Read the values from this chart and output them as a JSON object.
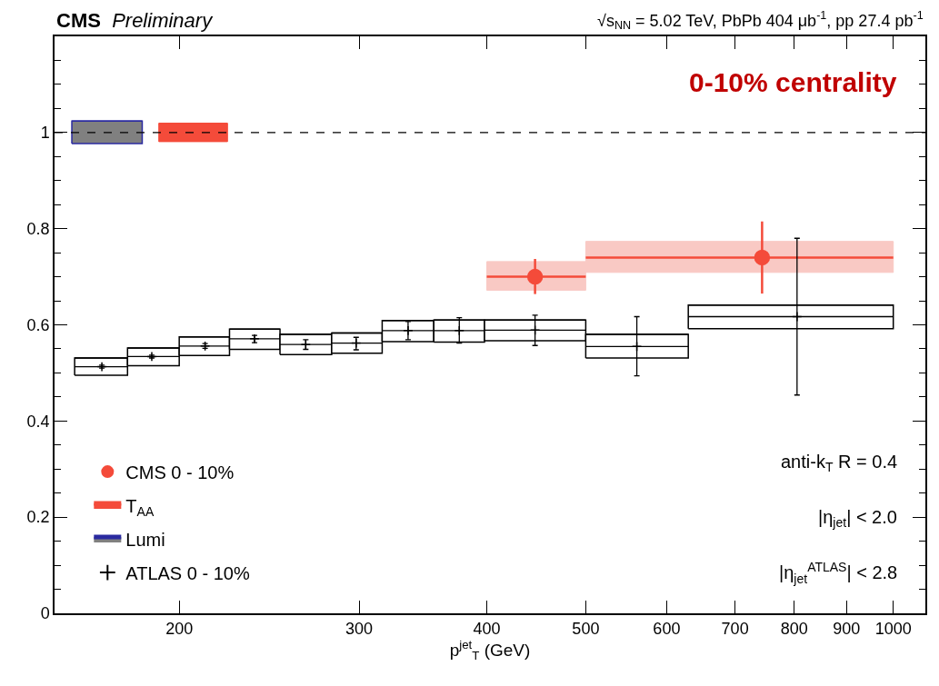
{
  "chart_data": {
    "type": "scatter",
    "title": "CMS",
    "subtitle": "Preliminary",
    "xlabel": "p$^{jet}$$_{T}$ (GeV)",
    "log": "x",
    "xlim": [
      151,
      1075
    ],
    "xticks": [
      200,
      300,
      400,
      500,
      600,
      700,
      800,
      900,
      1000
    ],
    "ylim": [
      0,
      1.2
    ],
    "yticks": [
      0,
      0.2,
      0.4,
      0.6,
      0.8,
      1
    ],
    "legend": "bottom left",
    "series": [
      {
        "type": "bar",
        "color": "#f9c9c4",
        "x": [
          447.2,
          707.1
        ],
        "xerrors": [
          [
            400,
            500
          ],
          [
            500,
            1000
          ]
        ],
        "base": [
          0.672,
          0.709
        ],
        "values": [
          0.059,
          0.064
        ]
      },
      {
        "type": "bar",
        "color": "#ffffff",
        "x": [
          167.6,
          188.7,
          211.7,
          237.7,
          266.1,
          298.1,
          335.0,
          375.7,
          446.1,
          561.2,
          793.7
        ],
        "xerrors": [
          [
            158,
            178
          ],
          [
            178,
            200
          ],
          [
            200,
            224
          ],
          [
            224,
            251
          ],
          [
            251,
            282
          ],
          [
            282,
            316
          ],
          [
            316,
            355
          ],
          [
            355,
            398
          ],
          [
            398,
            500
          ],
          [
            500,
            630
          ],
          [
            630,
            1000
          ]
        ],
        "base": [
          0.495,
          0.515,
          0.536,
          0.549,
          0.538,
          0.541,
          0.565,
          0.564,
          0.567,
          0.531,
          0.592
        ],
        "values": [
          0.036,
          0.037,
          0.039,
          0.042,
          0.042,
          0.042,
          0.044,
          0.046,
          0.043,
          0.049,
          0.049
        ]
      },
      {
        "name": "CMS 0 - 10%",
        "marker": "circle",
        "color": "#f44b3a",
        "x": [
          446,
          744
        ],
        "values": [
          0.7,
          0.74
        ],
        "errors": [
          [
            0.664,
            0.737
          ],
          [
            0.665,
            0.815
          ]
        ],
        "xerrors": [
          [
            400,
            500
          ],
          [
            500,
            1000
          ]
        ]
      },
      {
        "name": "T$_{AA}$",
        "type": "bar",
        "color": "#f44b3a",
        "x": [
          206.4
        ],
        "xerrors": [
          [
            191,
            223
          ]
        ],
        "base": [
          0.981
        ],
        "values": [
          0.038
        ]
      },
      {
        "name": "Lumi",
        "type": "bar",
        "color": "#808080",
        "x": [
          170.0
        ],
        "xerrors": [
          [
            157,
            184
          ]
        ],
        "base": [
          0.977
        ],
        "values": [
          0.047
        ]
      },
      {
        "name": "ATLAS 0 - 10%",
        "marker": "cross",
        "color": "#000000",
        "x": [
          168,
          188,
          212,
          237,
          266,
          298,
          335,
          376,
          446,
          561,
          805
        ],
        "values": [
          0.513,
          0.534,
          0.556,
          0.571,
          0.559,
          0.562,
          0.588,
          0.588,
          0.589,
          0.555,
          0.617
        ],
        "errors": [
          [
            0.51,
            0.516
          ],
          [
            0.531,
            0.537
          ],
          [
            0.551,
            0.561
          ],
          [
            0.563,
            0.578
          ],
          [
            0.549,
            0.569
          ],
          [
            0.548,
            0.574
          ],
          [
            0.569,
            0.607
          ],
          [
            0.562,
            0.615
          ],
          [
            0.557,
            0.62
          ],
          [
            0.494,
            0.617
          ],
          [
            0.454,
            0.78
          ]
        ],
        "xerrors": [
          [
            158,
            178
          ],
          [
            178,
            200
          ],
          [
            200,
            224
          ],
          [
            224,
            251
          ],
          [
            251,
            282
          ],
          [
            282,
            316
          ],
          [
            316,
            355
          ],
          [
            355,
            398
          ],
          [
            398,
            500
          ],
          [
            500,
            630
          ],
          [
            630,
            1000
          ]
        ]
      }
    ],
    "ref_lines": [
      {
        "axis": "y",
        "value": 1,
        "line_style": "dashed",
        "color": "#000000"
      }
    ],
    "annotations": [
      "√s$_{NN}$ = 5.02 TeV, PbPb 404 μb$^{-1}$, pp 27.4 pb$^{-1}$",
      "0-10% centrality",
      "anti-k$_{T}$ R = 0.4",
      "|η$_{jet}$| < 2.0",
      "|η$_{jet}$$^{ATLAS}$| < 2.8"
    ]
  }
}
